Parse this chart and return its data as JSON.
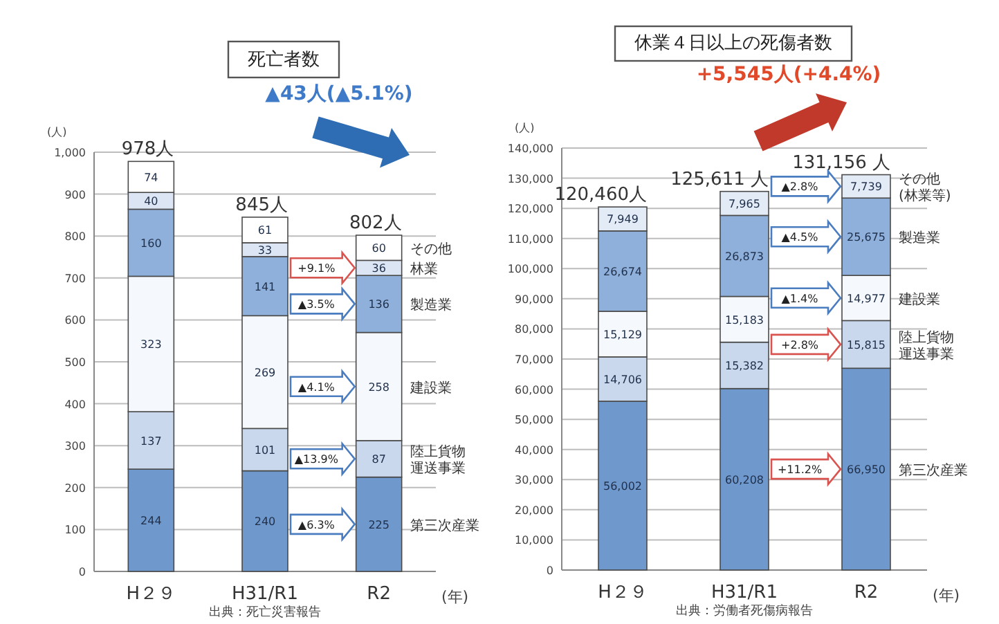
{
  "chart_data": [
    {
      "type": "bar",
      "stacked": true,
      "title": "死亡者数",
      "ylabel": "(人)",
      "xlabel": "(年)",
      "categories": [
        "H２９",
        "H31/R1",
        "R2"
      ],
      "series": [
        {
          "name": "第三次産業",
          "color": "#6f98cc",
          "values": [
            244,
            240,
            225
          ]
        },
        {
          "name": "陸上貨物運送事業",
          "color": "#c9d8ec",
          "values": [
            137,
            101,
            87
          ]
        },
        {
          "name": "建設業",
          "color": "#f5f8fc",
          "values": [
            323,
            269,
            258
          ]
        },
        {
          "name": "製造業",
          "color": "#8fb0da",
          "values": [
            160,
            141,
            136
          ]
        },
        {
          "name": "林業",
          "color": "#dbe5f3",
          "values": [
            40,
            33,
            36
          ]
        },
        {
          "name": "その他",
          "color": "#ffffff",
          "values": [
            74,
            61,
            60
          ]
        }
      ],
      "ylim": [
        0,
        1000
      ],
      "yticks": [
        0,
        100,
        200,
        300,
        400,
        500,
        600,
        700,
        800,
        900,
        {
          "value": 1000,
          "label": "1,000"
        }
      ],
      "grid": "y",
      "data_labels": true,
      "totals": [
        "978人",
        "845人",
        "802人"
      ],
      "annotations": [
        "▲43人(▲5.1%)",
        "+9.1%",
        "▲3.5%",
        "▲4.1%",
        "▲13.9%",
        "▲6.3%",
        "出典：死亡災害報告"
      ]
    },
    {
      "type": "bar",
      "stacked": true,
      "title": "休業４日以上の死傷者数",
      "ylabel": "(人)",
      "xlabel": "(年)",
      "categories": [
        "H２９",
        "H31/R1",
        "R2"
      ],
      "series": [
        {
          "name": "第三次産業",
          "color": "#6f98cc",
          "values": [
            56002,
            60208,
            66950
          ],
          "value_labels": [
            "56,002",
            "60,208",
            "66,950"
          ]
        },
        {
          "name": "陸上貨物運送事業",
          "color": "#c9d8ec",
          "values": [
            14706,
            15382,
            15815
          ],
          "value_labels": [
            "14,706",
            "15,382",
            "15,815"
          ]
        },
        {
          "name": "建設業",
          "color": "#f5f8fc",
          "values": [
            15129,
            15183,
            14977
          ],
          "value_labels": [
            "15,129",
            "15,183",
            "14,977"
          ]
        },
        {
          "name": "製造業",
          "color": "#8fb0da",
          "values": [
            26674,
            26873,
            25675
          ],
          "value_labels": [
            "26,674",
            "26,873",
            "25,675"
          ]
        },
        {
          "name": "その他(林業等)",
          "color": "#e3ebf6",
          "values": [
            7949,
            7965,
            7739
          ],
          "value_labels": [
            "7,949",
            "7,965",
            "7,739"
          ]
        }
      ],
      "ylim": [
        0,
        140000
      ],
      "yticks": [
        0,
        {
          "value": 10000,
          "label": "10,000"
        },
        {
          "value": 20000,
          "label": "20,000"
        },
        {
          "value": 30000,
          "label": "30,000"
        },
        {
          "value": 40000,
          "label": "40,000"
        },
        {
          "value": 50000,
          "label": "50,000"
        },
        {
          "value": 60000,
          "label": "60,000"
        },
        {
          "value": 70000,
          "label": "70,000"
        },
        {
          "value": 80000,
          "label": "80,000"
        },
        {
          "value": 90000,
          "label": "90,000"
        },
        {
          "value": 100000,
          "label": "100,000"
        },
        {
          "value": 110000,
          "label": "110,000"
        },
        {
          "value": 120000,
          "label": "120,000"
        },
        {
          "value": 130000,
          "label": "130,000"
        },
        {
          "value": 140000,
          "label": "140,000"
        }
      ],
      "grid": "y",
      "totals": [
        "120,460人",
        "125,611 人",
        "131,156 人"
      ],
      "annotations": [
        "+5,545人(+4.4%)",
        "▲2.8%",
        "▲4.5%",
        "▲1.4%",
        "+2.8%",
        "+11.2%",
        "出典：労働者死傷病報告"
      ]
    }
  ]
}
